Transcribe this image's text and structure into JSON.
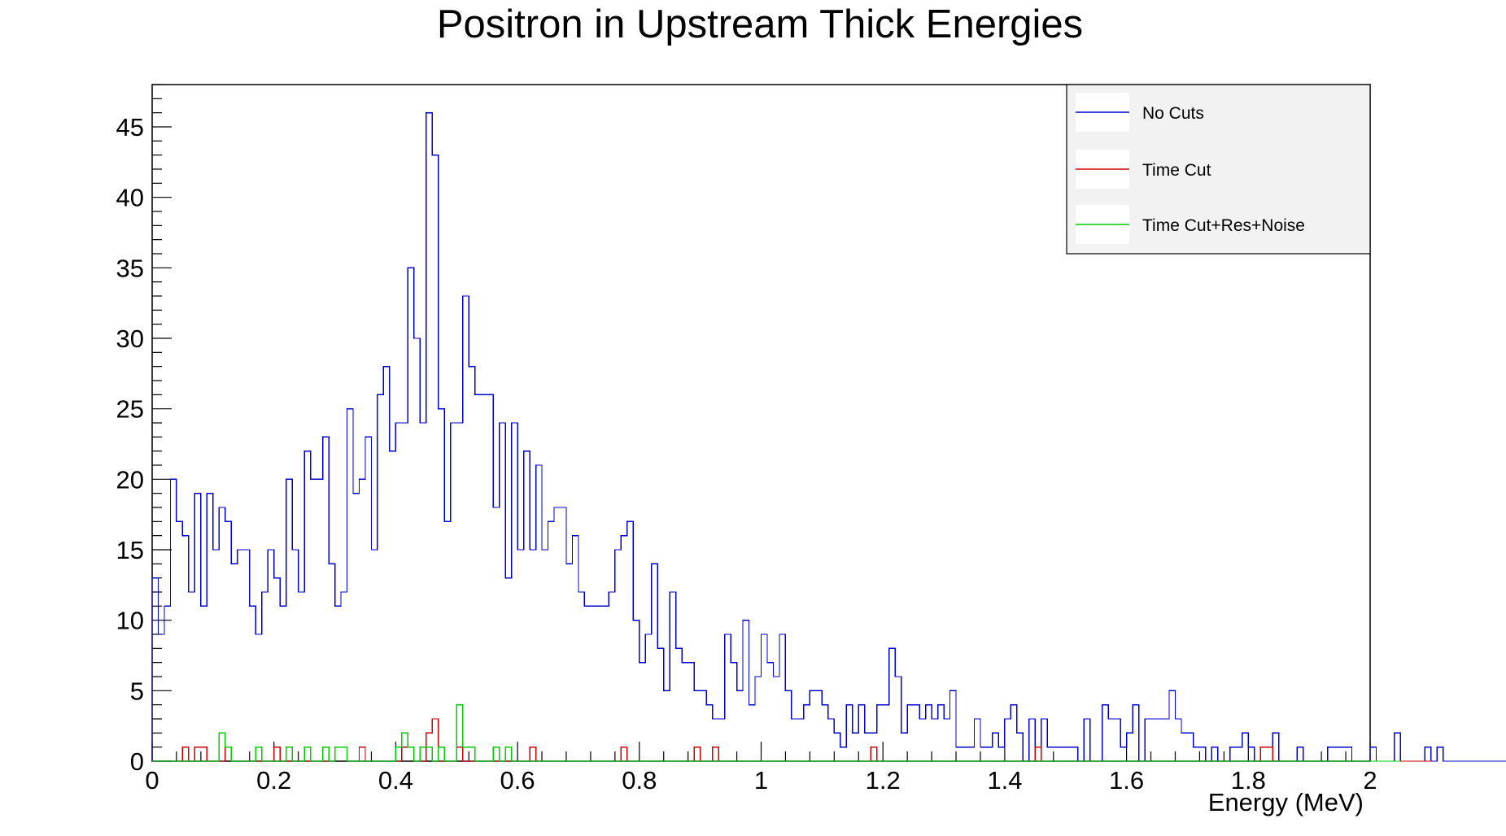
{
  "chart_data": {
    "type": "histogram",
    "title": "Positron in Upstream Thick Energies",
    "xlabel": "Energy (MeV)",
    "ylabel": "",
    "xlim": [
      0,
      2
    ],
    "ylim": [
      0,
      48
    ],
    "bin_width": 0.01,
    "x_ticks": [
      0,
      0.2,
      0.4,
      0.6,
      0.8,
      1,
      1.2,
      1.4,
      1.6,
      1.8,
      2
    ],
    "x_tick_labels": [
      "0",
      "0.2",
      "0.4",
      "0.6",
      "0.8",
      "1",
      "1.2",
      "1.4",
      "1.6",
      "1.8",
      "2"
    ],
    "y_ticks": [
      0,
      5,
      10,
      15,
      20,
      25,
      30,
      35,
      40,
      45
    ],
    "y_tick_labels": [
      "0",
      "5",
      "10",
      "15",
      "20",
      "25",
      "30",
      "35",
      "40",
      "45"
    ],
    "legend_position": "top-right",
    "series": [
      {
        "name": "No Cuts",
        "color": "#0000cc",
        "values": [
          13,
          9,
          11,
          20,
          17,
          16,
          12,
          19,
          11,
          19,
          15,
          18,
          17,
          14,
          15,
          15,
          11,
          9,
          12,
          15,
          13,
          11,
          20,
          15,
          12,
          22,
          20,
          20,
          23,
          14,
          11,
          12,
          25,
          19,
          20,
          23,
          15,
          26,
          28,
          22,
          24,
          24,
          35,
          30,
          24,
          46,
          43,
          25,
          17,
          24,
          24,
          33,
          28,
          26,
          26,
          26,
          18,
          24,
          13,
          24,
          15,
          22,
          15,
          21,
          15,
          17,
          18,
          18,
          14,
          16,
          12,
          11,
          11,
          11,
          11,
          12,
          15,
          16,
          17,
          10,
          7,
          9,
          14,
          8,
          5,
          12,
          8,
          7,
          7,
          5,
          5,
          4,
          3,
          3,
          9,
          7,
          5,
          10,
          4,
          6,
          9,
          7,
          6,
          9,
          5,
          3,
          3,
          4,
          5,
          5,
          4,
          3,
          2,
          1,
          4,
          2,
          4,
          2,
          2,
          4,
          4,
          8,
          6,
          2,
          4,
          4,
          3,
          4,
          3,
          4,
          3,
          5,
          1,
          1,
          1,
          3,
          1,
          1,
          2,
          1,
          3,
          4,
          2,
          0,
          3,
          1,
          3,
          1,
          1,
          1,
          1,
          1,
          0,
          3,
          0,
          0,
          4,
          3,
          3,
          1,
          2,
          4,
          0,
          3,
          3,
          3,
          3,
          5,
          3,
          2,
          2,
          1,
          1,
          0,
          1,
          0,
          0,
          1,
          1,
          2,
          1,
          0,
          0,
          0,
          2,
          0,
          0,
          0,
          1,
          0,
          0,
          0,
          0,
          1,
          1,
          1,
          1,
          0,
          0,
          0,
          1,
          0,
          0,
          0,
          2,
          0,
          0,
          0,
          0,
          1,
          0,
          1,
          0,
          0,
          0,
          0,
          0,
          0,
          0,
          0,
          0,
          0,
          0,
          0,
          0,
          0,
          0,
          0,
          0,
          0,
          0,
          0,
          0,
          0,
          0,
          0,
          0,
          0,
          0,
          0,
          0,
          0,
          0,
          0,
          0,
          0,
          0,
          0,
          0,
          0,
          0,
          0,
          0,
          0,
          0,
          0,
          0,
          0,
          0,
          0,
          0,
          0,
          0,
          0,
          0,
          0
        ]
      },
      {
        "name": "Time Cut",
        "color": "#cc0000",
        "values": [
          0,
          0,
          0,
          0,
          0,
          1,
          0,
          1,
          1,
          0,
          0,
          0,
          1,
          0,
          0,
          0,
          0,
          0,
          0,
          0,
          1,
          0,
          0,
          0,
          0,
          0,
          0,
          0,
          0,
          0,
          1,
          1,
          0,
          0,
          1,
          0,
          0,
          0,
          0,
          0,
          0,
          1,
          1,
          0,
          0,
          2,
          3,
          0,
          0,
          0,
          1,
          0,
          0,
          0,
          0,
          0,
          0,
          0,
          0,
          0,
          0,
          0,
          1,
          0,
          0,
          0,
          0,
          0,
          0,
          0,
          0,
          0,
          0,
          0,
          0,
          0,
          0,
          1,
          0,
          0,
          0,
          0,
          0,
          0,
          0,
          0,
          0,
          0,
          0,
          1,
          0,
          0,
          1,
          0,
          0,
          0,
          0,
          0,
          0,
          0,
          0,
          0,
          0,
          0,
          0,
          0,
          0,
          0,
          0,
          0,
          0,
          0,
          0,
          0,
          0,
          0,
          0,
          0,
          1,
          0,
          0,
          0,
          0,
          0,
          0,
          0,
          0,
          0,
          0,
          0,
          0,
          0,
          0,
          0,
          0,
          0,
          0,
          0,
          0,
          0,
          0,
          0,
          0,
          0,
          0,
          1,
          0,
          0,
          0,
          0,
          0,
          0,
          0,
          0,
          0,
          0,
          0,
          0,
          0,
          0,
          0,
          0,
          0,
          0,
          0,
          0,
          0,
          0,
          0,
          0,
          0,
          0,
          0,
          0,
          0,
          0,
          0,
          0,
          0,
          0,
          0,
          0,
          1,
          1,
          0,
          0,
          0,
          0,
          0,
          0,
          0,
          0,
          0,
          0,
          0,
          0,
          0,
          0,
          0,
          0,
          0,
          0,
          0,
          0,
          0,
          0,
          0,
          0,
          0,
          0
        ]
      },
      {
        "name": "Time Cut+Res+Noise",
        "color": "#00cc00",
        "values": [
          0,
          0,
          0,
          0,
          0,
          0,
          0,
          0,
          0,
          0,
          0,
          2,
          1,
          0,
          0,
          0,
          0,
          1,
          0,
          0,
          0,
          0,
          1,
          0,
          0,
          1,
          0,
          0,
          1,
          0,
          1,
          1,
          0,
          0,
          0,
          0,
          0,
          0,
          0,
          0,
          1,
          2,
          1,
          0,
          1,
          1,
          0,
          1,
          0,
          0,
          4,
          1,
          1,
          0,
          0,
          0,
          1,
          0,
          1,
          0,
          0,
          0,
          0,
          0,
          0,
          0,
          0,
          0,
          0,
          0,
          0,
          0,
          0,
          0,
          0,
          0,
          0,
          0,
          0,
          0,
          0,
          0,
          0,
          0,
          0,
          0,
          0,
          0,
          0,
          0,
          0,
          0,
          0,
          0,
          0,
          0,
          0,
          0,
          0,
          0,
          0,
          0,
          0,
          0,
          0,
          0,
          0,
          0,
          0,
          0,
          0,
          0,
          0,
          0,
          0,
          0,
          0,
          0,
          0,
          0,
          0,
          0,
          0,
          0,
          0,
          0,
          0,
          0,
          0,
          0,
          0,
          0,
          0,
          0,
          0,
          0,
          0,
          0,
          0,
          0,
          0,
          0,
          0,
          0,
          0,
          0,
          0,
          0,
          0,
          0,
          0,
          0,
          0,
          0,
          0,
          0,
          0,
          0,
          0,
          0,
          0,
          0,
          0,
          0,
          0,
          0,
          0,
          0,
          0,
          0,
          0,
          0,
          0,
          0,
          0,
          0,
          0,
          0,
          0,
          0,
          0,
          0,
          0,
          0,
          0,
          0,
          0,
          0,
          0,
          0,
          0,
          0,
          0,
          0,
          0,
          0,
          0,
          0,
          0,
          0,
          0,
          0,
          0,
          0,
          0
        ]
      }
    ]
  }
}
